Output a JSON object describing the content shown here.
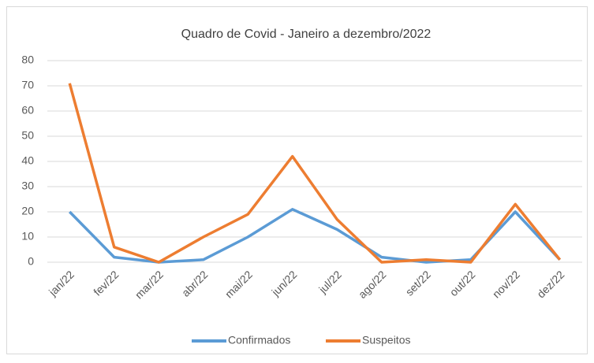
{
  "chart_data": {
    "type": "line",
    "title": "Quadro de Covid - Janeiro a dezembro/2022",
    "categories": [
      "jan/22",
      "fev/22",
      "mar/22",
      "abr/22",
      "mai/22",
      "jun/22",
      "jul/22",
      "ago/22",
      "set/22",
      "out/22",
      "nov/22",
      "dez/22"
    ],
    "series": [
      {
        "name": "Confirmados",
        "color": "#5b9bd5",
        "values": [
          20,
          2,
          0,
          1,
          10,
          21,
          13,
          2,
          0,
          1,
          20,
          1
        ]
      },
      {
        "name": "Suspeitos",
        "color": "#ed7d31",
        "values": [
          71,
          6,
          0,
          10,
          19,
          42,
          17,
          0,
          1,
          0,
          23,
          1
        ]
      }
    ],
    "ylim": [
      0,
      80
    ],
    "yticks": [
      0,
      10,
      20,
      30,
      40,
      50,
      60,
      70,
      80
    ],
    "grid": true,
    "legend": "bottom"
  }
}
